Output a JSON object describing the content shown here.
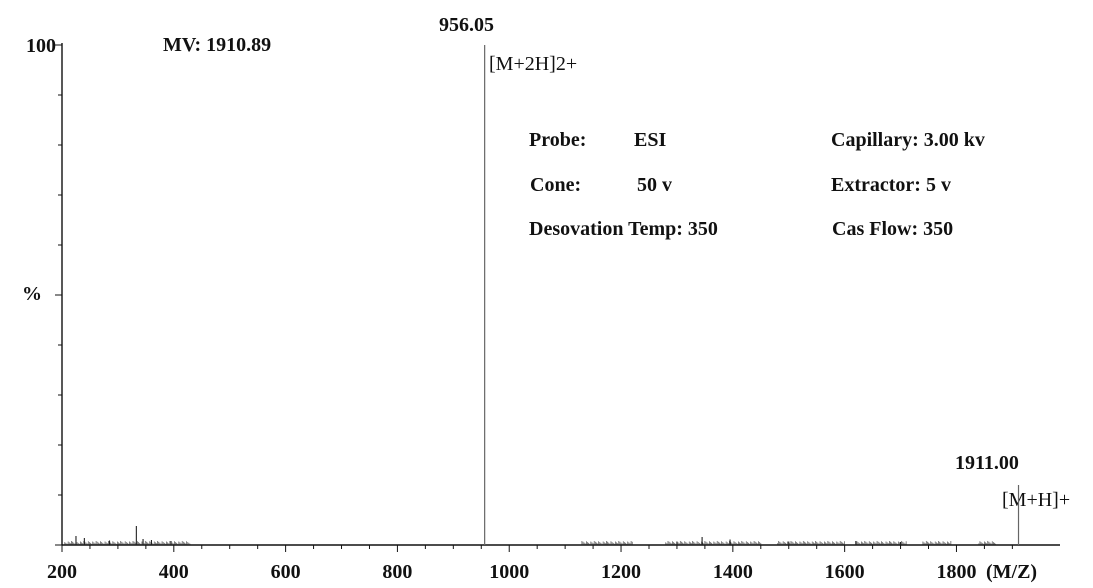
{
  "chart_data": {
    "type": "bar",
    "subtype": "mass-spectrum-stick",
    "title": "",
    "xlabel": "(M/Z)",
    "ylabel": "%",
    "xlim": [
      200,
      1860
    ],
    "ylim": [
      0,
      100
    ],
    "x_ticks": [
      200,
      400,
      600,
      800,
      1000,
      1200,
      1400,
      1600,
      1800
    ],
    "y_tick_labels": [
      {
        "value": 100,
        "label": "100"
      },
      {
        "value": 50,
        "label": "%"
      }
    ],
    "grid": false,
    "legend": "none",
    "colors": {
      "axis": "#111111",
      "peak": "#666666",
      "noise": "#222222"
    },
    "series": [
      {
        "values": [
          {
            "x": 956.05,
            "y": 100
          },
          {
            "x": 1911.0,
            "y": 12
          },
          {
            "x": 333,
            "y": 3.8
          },
          {
            "x": 225,
            "y": 1.8
          },
          {
            "x": 240,
            "y": 1.4
          },
          {
            "x": 285,
            "y": 0.9
          },
          {
            "x": 345,
            "y": 1.2
          },
          {
            "x": 360,
            "y": 1.0
          },
          {
            "x": 395,
            "y": 0.8
          },
          {
            "x": 1300,
            "y": 0.7
          },
          {
            "x": 1345,
            "y": 1.6
          },
          {
            "x": 1395,
            "y": 1.1
          },
          {
            "x": 1500,
            "y": 0.7
          },
          {
            "x": 1620,
            "y": 0.8
          },
          {
            "x": 1700,
            "y": 0.6
          }
        ]
      }
    ],
    "peak_labels": [
      {
        "x": 956.05,
        "text": "956.05",
        "ion": "[M+2H]2+"
      },
      {
        "x": 1911.0,
        "text": "1911.00",
        "ion": "[M+H]+"
      }
    ],
    "annotations": {
      "mv": "MV: 1910.89",
      "conditions": [
        {
          "label": "Probe:",
          "value": "ESI"
        },
        {
          "label": "Cone:",
          "value": "50 v"
        },
        {
          "label": "Desovation Temp: 350",
          "value": ""
        },
        {
          "label": "Capillary: 3.00 kv",
          "value": ""
        },
        {
          "label": "Extractor: 5 v",
          "value": ""
        },
        {
          "label": "Cas Flow: 350",
          "value": ""
        }
      ]
    }
  }
}
